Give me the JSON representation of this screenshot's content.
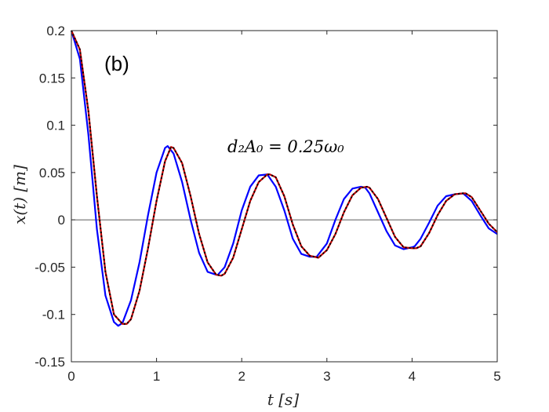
{
  "chart_data": {
    "type": "line",
    "panel_label": "(b)",
    "annotation": "d₂A₀ = 0.25ω₀",
    "xlabel": "t [s]",
    "ylabel": "x(t) [m]",
    "xlim": [
      0,
      5
    ],
    "ylim": [
      -0.15,
      0.2
    ],
    "xticks": [
      0,
      1,
      2,
      3,
      4,
      5
    ],
    "xtick_labels": [
      "0",
      "1",
      "2",
      "3",
      "4",
      "5"
    ],
    "yticks": [
      -0.15,
      -0.1,
      -0.05,
      0,
      0.05,
      0.1,
      0.15,
      0.2
    ],
    "ytick_labels": [
      "-0.15",
      "-0.1",
      "-0.05",
      "0",
      "0.05",
      "0.1",
      "0.15",
      "0.2"
    ],
    "grid": false,
    "zero_line": true,
    "series": [
      {
        "color": "#0000ff",
        "style": "solid",
        "x": [
          0,
          0.1,
          0.2,
          0.3,
          0.4,
          0.5,
          0.55,
          0.6,
          0.7,
          0.8,
          0.9,
          1.0,
          1.1,
          1.13,
          1.2,
          1.3,
          1.4,
          1.5,
          1.6,
          1.7,
          1.72,
          1.8,
          1.9,
          2.0,
          2.1,
          2.2,
          2.3,
          2.4,
          2.5,
          2.6,
          2.7,
          2.8,
          2.88,
          3.0,
          3.1,
          3.2,
          3.3,
          3.4,
          3.45,
          3.5,
          3.6,
          3.7,
          3.8,
          3.9,
          4.0,
          4.03,
          4.1,
          4.2,
          4.3,
          4.4,
          4.5,
          4.6,
          4.7,
          4.8,
          4.9,
          5.0
        ],
        "y": [
          0.2,
          0.17,
          0.09,
          -0.01,
          -0.08,
          -0.108,
          -0.112,
          -0.109,
          -0.085,
          -0.045,
          0.005,
          0.05,
          0.076,
          0.078,
          0.07,
          0.04,
          0.0,
          -0.035,
          -0.055,
          -0.058,
          -0.058,
          -0.05,
          -0.025,
          0.01,
          0.035,
          0.047,
          0.048,
          0.035,
          0.01,
          -0.02,
          -0.036,
          -0.039,
          -0.039,
          -0.025,
          0.0,
          0.022,
          0.033,
          0.035,
          0.034,
          0.028,
          0.008,
          -0.012,
          -0.027,
          -0.031,
          -0.029,
          -0.028,
          -0.02,
          -0.003,
          0.015,
          0.025,
          0.027,
          0.028,
          0.02,
          0.005,
          -0.009,
          -0.015
        ]
      },
      {
        "color": "#c00000",
        "style": "solid",
        "x": [
          0,
          0.1,
          0.2,
          0.3,
          0.4,
          0.5,
          0.6,
          0.65,
          0.7,
          0.8,
          0.9,
          1.0,
          1.1,
          1.17,
          1.2,
          1.3,
          1.4,
          1.5,
          1.6,
          1.7,
          1.76,
          1.8,
          1.9,
          2.0,
          2.1,
          2.2,
          2.3,
          2.33,
          2.4,
          2.5,
          2.6,
          2.7,
          2.8,
          2.9,
          3.0,
          3.1,
          3.2,
          3.3,
          3.4,
          3.47,
          3.5,
          3.6,
          3.7,
          3.8,
          3.9,
          4.0,
          4.05,
          4.1,
          4.2,
          4.3,
          4.4,
          4.5,
          4.6,
          4.63,
          4.7,
          4.8,
          4.9,
          5.0
        ],
        "y": [
          0.2,
          0.18,
          0.115,
          0.025,
          -0.055,
          -0.1,
          -0.11,
          -0.11,
          -0.105,
          -0.075,
          -0.03,
          0.02,
          0.062,
          0.077,
          0.076,
          0.06,
          0.025,
          -0.015,
          -0.045,
          -0.058,
          -0.059,
          -0.057,
          -0.04,
          -0.01,
          0.02,
          0.04,
          0.048,
          0.048,
          0.045,
          0.025,
          -0.005,
          -0.028,
          -0.038,
          -0.04,
          -0.032,
          -0.015,
          0.008,
          0.026,
          0.034,
          0.035,
          0.034,
          0.022,
          0.002,
          -0.018,
          -0.029,
          -0.03,
          -0.03,
          -0.028,
          -0.014,
          0.005,
          0.02,
          0.027,
          0.028,
          0.028,
          0.024,
          0.01,
          -0.004,
          -0.013
        ]
      },
      {
        "color": "#000000",
        "style": "dotted",
        "x": [
          0,
          0.1,
          0.2,
          0.3,
          0.4,
          0.5,
          0.6,
          0.65,
          0.7,
          0.8,
          0.9,
          1.0,
          1.1,
          1.17,
          1.2,
          1.3,
          1.4,
          1.5,
          1.6,
          1.7,
          1.76,
          1.8,
          1.9,
          2.0,
          2.1,
          2.2,
          2.3,
          2.33,
          2.4,
          2.5,
          2.6,
          2.7,
          2.8,
          2.9,
          3.0,
          3.1,
          3.2,
          3.3,
          3.4,
          3.47,
          3.5,
          3.6,
          3.7,
          3.8,
          3.9,
          4.0,
          4.05,
          4.1,
          4.2,
          4.3,
          4.4,
          4.5,
          4.6,
          4.63,
          4.7,
          4.8,
          4.9,
          5.0
        ],
        "y": [
          0.2,
          0.18,
          0.115,
          0.025,
          -0.055,
          -0.1,
          -0.11,
          -0.11,
          -0.105,
          -0.075,
          -0.03,
          0.02,
          0.062,
          0.077,
          0.076,
          0.06,
          0.025,
          -0.015,
          -0.045,
          -0.058,
          -0.059,
          -0.057,
          -0.04,
          -0.01,
          0.02,
          0.04,
          0.048,
          0.048,
          0.045,
          0.025,
          -0.005,
          -0.028,
          -0.038,
          -0.04,
          -0.032,
          -0.015,
          0.008,
          0.026,
          0.034,
          0.035,
          0.034,
          0.022,
          0.002,
          -0.018,
          -0.029,
          -0.03,
          -0.03,
          -0.028,
          -0.014,
          0.005,
          0.02,
          0.027,
          0.028,
          0.028,
          0.024,
          0.01,
          -0.004,
          -0.013
        ]
      }
    ]
  }
}
